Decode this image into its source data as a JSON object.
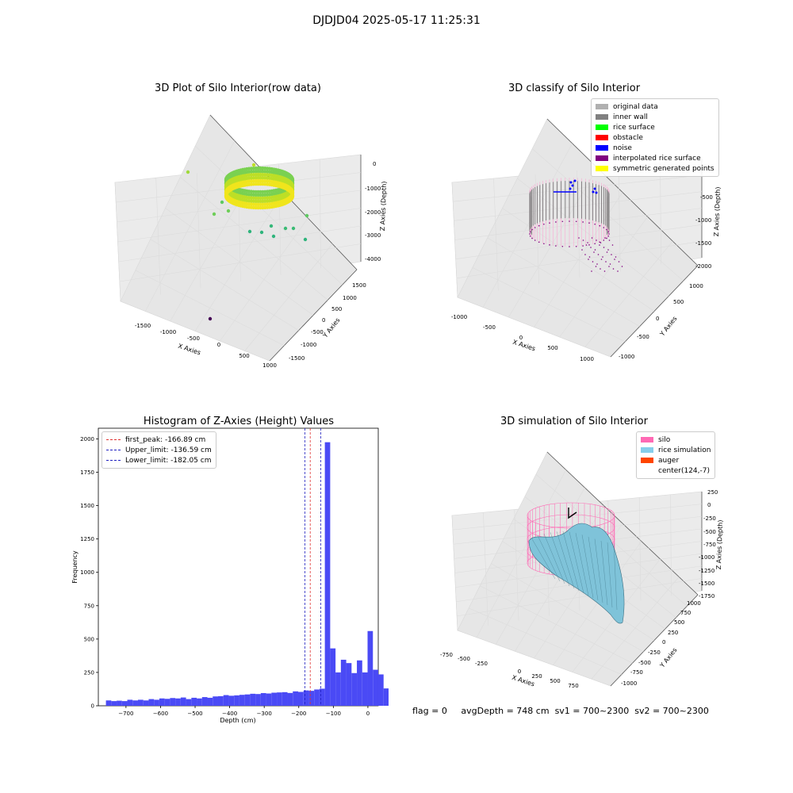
{
  "figure_title": "DJDJD04 2025-05-17 11:25:31",
  "status": {
    "flag": "flag = 0",
    "avg_depth": "avgDepth = 748 cm",
    "sv1": "sv1 = 700~2300",
    "sv2": "sv2 = 700~2300"
  },
  "chart_data": [
    {
      "type": "scatter",
      "title": "3D Plot of Silo Interior(row data)",
      "xlabel": "X Axies",
      "ylabel": "Y Axies",
      "zlabel": "Z Axies (Depth)",
      "x_ticks": [
        "-1500",
        "-1000",
        "-500",
        "0",
        "500",
        "1000"
      ],
      "y_ticks": [
        "-1500",
        "-1000",
        "-500",
        "0",
        "500",
        "1000",
        "1500"
      ],
      "z_ticks": [
        "0",
        "-1000",
        "-2000",
        "-3000",
        "-4000"
      ],
      "colormap": "viridis"
    },
    {
      "type": "scatter",
      "title": "3D classify of Silo Interior",
      "xlabel": "X Axies",
      "ylabel": "Y Axies",
      "zlabel": "Z Axies (Depth)",
      "x_ticks": [
        "-1000",
        "-500",
        "0",
        "500",
        "1000"
      ],
      "y_ticks": [
        "-1000",
        "-500",
        "0",
        "500",
        "1000"
      ],
      "z_ticks": [
        "-500",
        "-1000",
        "-1500",
        "-2000"
      ],
      "legend": [
        {
          "label": "original data",
          "color": "#b0b0b0"
        },
        {
          "label": "inner wall",
          "color": "#808080"
        },
        {
          "label": "rice surface",
          "color": "#00ff00"
        },
        {
          "label": "obstacle",
          "color": "#ff0000"
        },
        {
          "label": "noise",
          "color": "#0000ff"
        },
        {
          "label": "interpolated rice surface",
          "color": "#800080"
        },
        {
          "label": "symmetric generated points",
          "color": "#ffff00"
        }
      ]
    },
    {
      "type": "bar",
      "title": "Histogram of Z-Axies (Height) Values",
      "xlabel": "Depth (cm)",
      "ylabel": "Frequency",
      "xlim": [
        -780,
        30
      ],
      "ylim": [
        0,
        2080
      ],
      "x_ticks": [
        -700,
        -600,
        -500,
        -400,
        -300,
        -200,
        -100,
        0
      ],
      "y_ticks": [
        0,
        250,
        500,
        750,
        1000,
        1250,
        1500,
        1750,
        2000
      ],
      "bar_color": "#4a4af5",
      "bins": {
        "start": -758,
        "width": 15.45,
        "values": [
          40,
          35,
          38,
          35,
          45,
          40,
          45,
          40,
          50,
          45,
          55,
          52,
          58,
          55,
          62,
          50,
          60,
          55,
          65,
          60,
          70,
          72,
          80,
          75,
          78,
          82,
          85,
          90,
          88,
          95,
          92,
          98,
          100,
          102,
          96,
          108,
          104,
          115,
          112,
          122,
          128,
          1975,
          430,
          250,
          345,
          320,
          245,
          340,
          250,
          560,
          270,
          235,
          130
        ]
      },
      "vlines": [
        {
          "label": "first_peak: -166.89 cm",
          "x": -166.89,
          "color": "#e03030"
        },
        {
          "label": "Upper_limit: -136.59 cm",
          "x": -136.59,
          "color": "#2020c0"
        },
        {
          "label": "Lower_limit: -182.05 cm",
          "x": -182.05,
          "color": "#2020c0"
        }
      ]
    },
    {
      "type": "area",
      "title": "3D simulation of Silo Interior",
      "xlabel": "X Axies",
      "ylabel": "Y Axies",
      "zlabel": "Z Axies (Depth)",
      "x_ticks": [
        "-750",
        "-500",
        "-250",
        "0",
        "250",
        "500",
        "750"
      ],
      "y_ticks": [
        "-1000",
        "-750",
        "-500",
        "-250",
        "0",
        "250",
        "500",
        "750",
        "1000"
      ],
      "z_ticks": [
        "250",
        "0",
        "-250",
        "-500",
        "-750",
        "-1000",
        "-1250",
        "-1500",
        "-1750"
      ],
      "legend": [
        {
          "label": "silo",
          "color": "#ff69b4"
        },
        {
          "label": "rice simulation",
          "color": "#87ceeb"
        },
        {
          "label": "auger",
          "color": "#ff4500"
        },
        {
          "label": "center(124,-7)",
          "color": ""
        }
      ]
    }
  ]
}
